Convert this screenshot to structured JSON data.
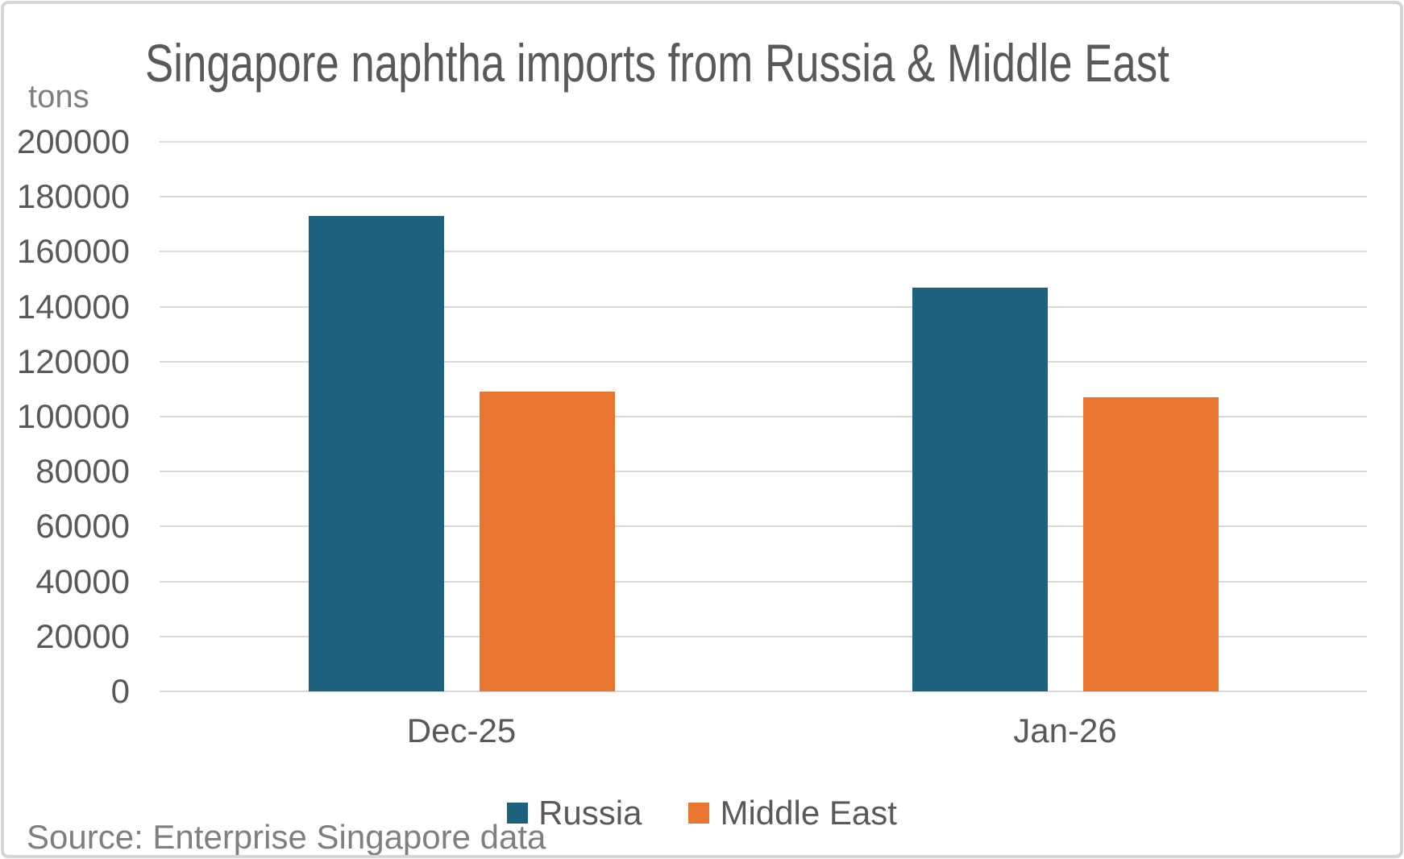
{
  "chart_data": {
    "type": "bar",
    "title": "Singapore naphtha imports from Russia & Middle East",
    "unit_label": "tons",
    "categories": [
      "Dec-25",
      "Jan-26"
    ],
    "series": [
      {
        "name": "Russia",
        "color": "#1e617f",
        "values": [
          173000,
          147000
        ]
      },
      {
        "name": "Middle East",
        "color": "#e8762f",
        "values": [
          109000,
          107000
        ]
      }
    ],
    "ylim": [
      0,
      200000
    ],
    "ytick_step": 20000,
    "grid": true,
    "legend_position": "bottom",
    "xlabel": "",
    "ylabel": "tons"
  },
  "source_note": "Source: Enterprise Singapore data",
  "colors": {
    "title_text": "#595959",
    "axis_text": "#595959",
    "muted_text": "#7f7f7f",
    "gridline": "#d9d9d9",
    "frame_border": "#d6d4d4",
    "background": "#ffffff",
    "russia": "#1e617f",
    "middle_east": "#e8762f"
  }
}
